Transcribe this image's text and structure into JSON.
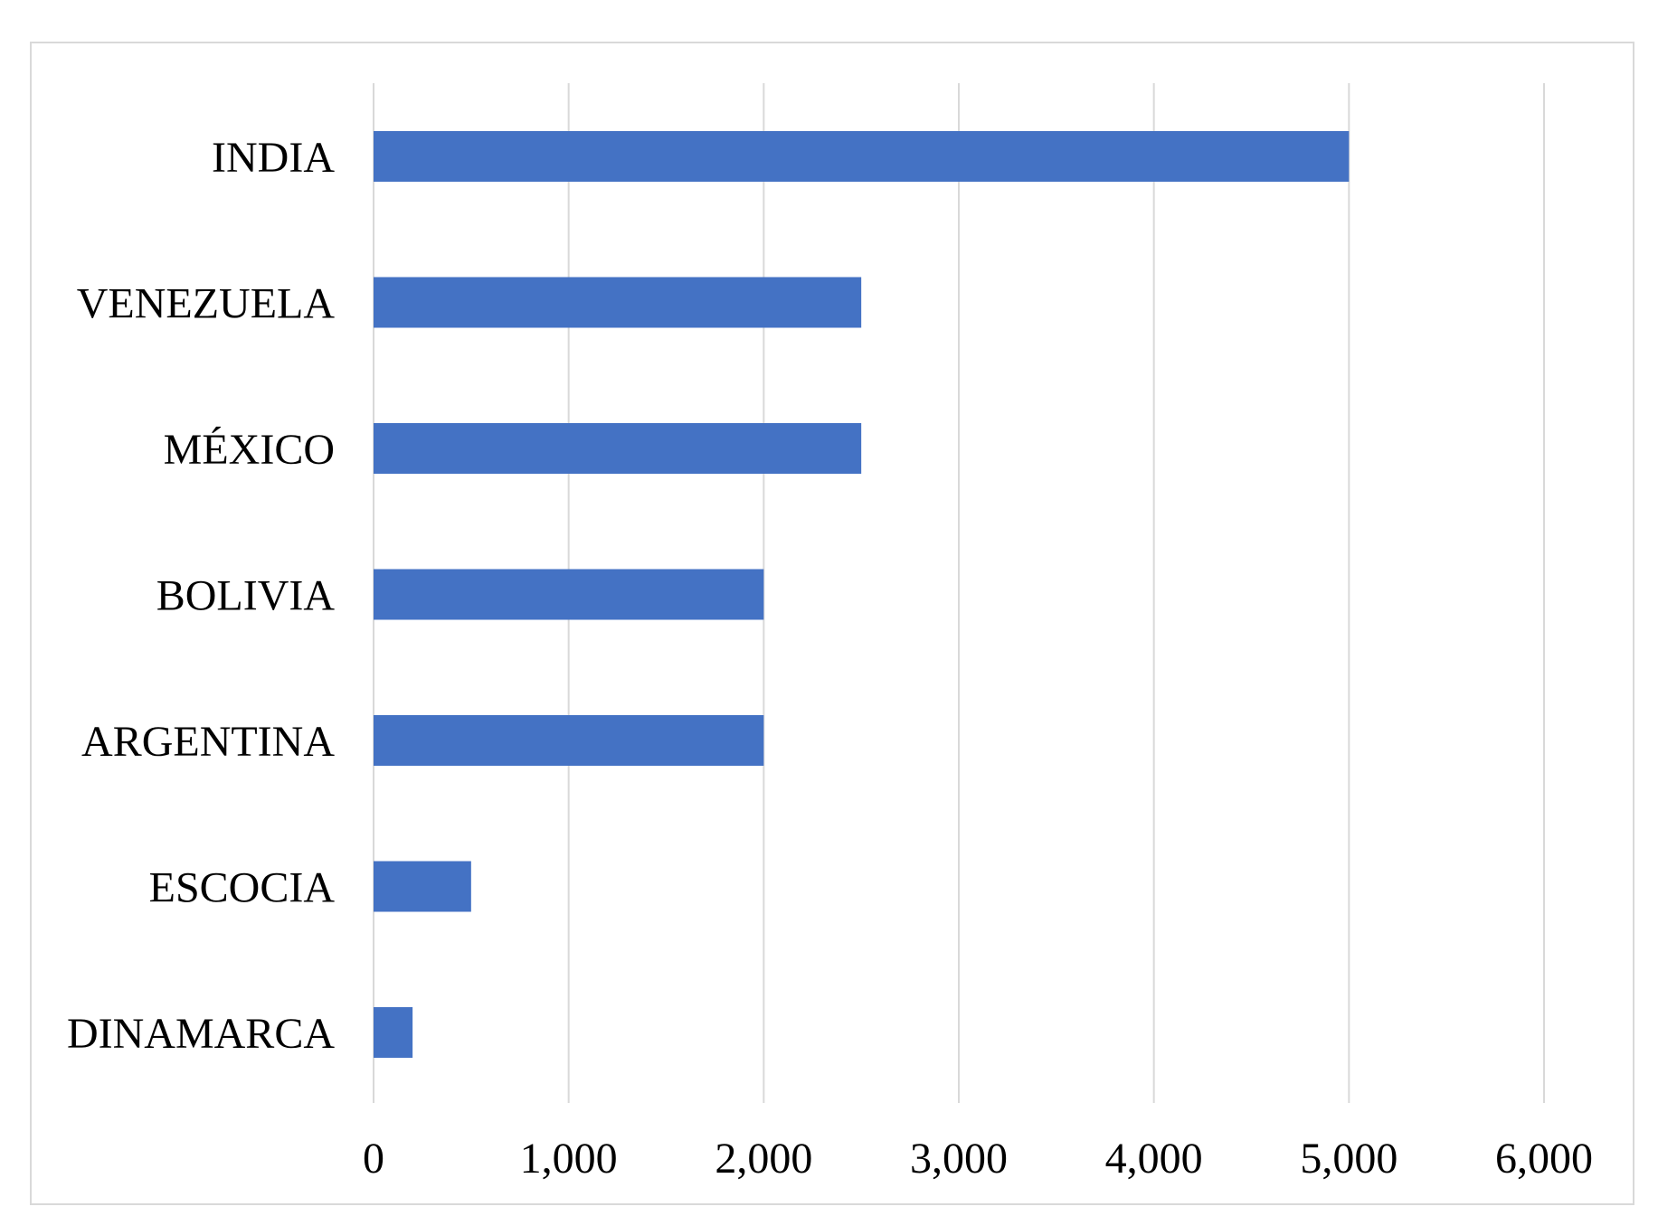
{
  "chart_data": {
    "type": "bar",
    "orientation": "horizontal",
    "categories": [
      "INDIA",
      "VENEZUELA",
      "MÉXICO",
      "BOLIVIA",
      "ARGENTINA",
      "ESCOCIA",
      "DINAMARCA"
    ],
    "values": [
      5000,
      2500,
      2500,
      2000,
      2000,
      500,
      200
    ],
    "x_ticks": [
      "0",
      "1,000",
      "2,000",
      "3,000",
      "4,000",
      "5,000",
      "6,000"
    ],
    "xlim": [
      0,
      6000
    ],
    "title": "",
    "xlabel": "",
    "ylabel": "",
    "grid": "vertical",
    "legend": "none",
    "colors": {
      "bar": "#4472C4",
      "grid": "#d9d9d9",
      "frame": "#d9d9d9",
      "text": "#000000"
    }
  }
}
